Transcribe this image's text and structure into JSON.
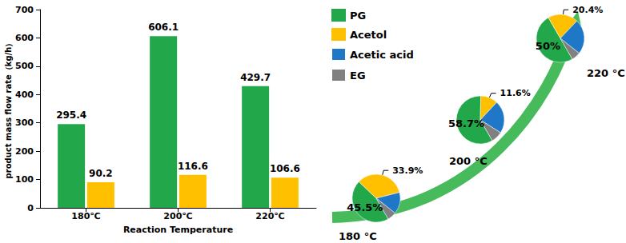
{
  "chart_data": [
    {
      "type": "bar",
      "x_label": "Reaction Temperature",
      "y_label": "product mass flow rate（kg/h）",
      "categories": [
        "180℃",
        "200℃",
        "220℃"
      ],
      "series": [
        {
          "name": "PG",
          "color": "#22a84a",
          "values": [
            295.4,
            606.1,
            429.7
          ]
        },
        {
          "name": "Acetol",
          "color": "#ffc000",
          "values": [
            90.2,
            116.6,
            106.6
          ]
        }
      ],
      "ylim": [
        0,
        700
      ],
      "yticks": [
        0,
        100,
        200,
        300,
        400,
        500,
        600,
        700
      ],
      "grid": false,
      "data_labels": true,
      "legend": "right"
    },
    {
      "type": "pie",
      "title": "180 °C",
      "categories": [
        "PG",
        "Acetol",
        "Acetic acid",
        "EG"
      ],
      "values": [
        45.5,
        33.9,
        14.6,
        6.0
      ],
      "value_labels": [
        "45.5%",
        "33.9%",
        null,
        null
      ],
      "colors": [
        "#22a84a",
        "#ffc000",
        "#1f77c8",
        "#808080"
      ]
    },
    {
      "type": "pie",
      "title": "200 °C",
      "categories": [
        "PG",
        "Acetol",
        "Acetic acid",
        "EG"
      ],
      "values": [
        58.7,
        11.6,
        22.0,
        7.7
      ],
      "value_labels": [
        "58.7%",
        "11.6%",
        null,
        null
      ],
      "colors": [
        "#22a84a",
        "#ffc000",
        "#1f77c8",
        "#808080"
      ]
    },
    {
      "type": "pie",
      "title": "220 °C",
      "categories": [
        "PG",
        "Acetol",
        "Acetic acid",
        "EG"
      ],
      "values": [
        50,
        20.4,
        23.6,
        6.0
      ],
      "value_labels": [
        "50%",
        "20.4%",
        null,
        null
      ],
      "colors": [
        "#22a84a",
        "#ffc000",
        "#1f77c8",
        "#808080"
      ]
    }
  ]
}
